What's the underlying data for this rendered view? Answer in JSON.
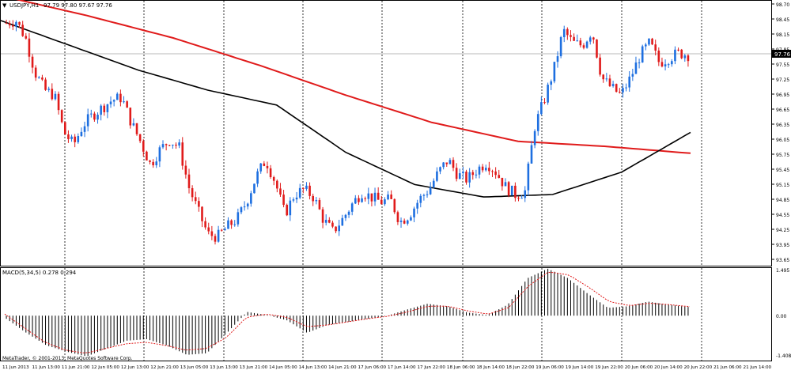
{
  "window": {
    "symbol_label": "USDJPY,H1",
    "ohlc_label": "97.79 97.80 97.67 97.76",
    "menu_arrow": "▼"
  },
  "price_axis": {
    "labels": [
      "98.70",
      "98.45",
      "98.15",
      "97.85",
      "97.55",
      "97.25",
      "96.95",
      "96.65",
      "96.35",
      "96.05",
      "95.75",
      "95.45",
      "95.15",
      "94.85",
      "94.55",
      "94.25",
      "93.95",
      "93.65"
    ],
    "current_price": "97.76",
    "colors": {
      "bull": "#1e6fe0",
      "bear": "#e01b1b",
      "current_tag": "#000000"
    }
  },
  "macd_panel": {
    "label": "MACD(5,34,5) 0.278 0.294",
    "axis_labels": [
      "1.495",
      "0.00",
      "-1.408"
    ]
  },
  "time_axis": {
    "labels": [
      "11 Jun 2013",
      "11 Jun 13:00",
      "11 Jun 21:00",
      "12 Jun 05:00",
      "12 Jun 13:00",
      "12 Jun 21:00",
      "13 Jun 05:00",
      "13 Jun 13:00",
      "13 Jun 21:00",
      "14 Jun 05:00",
      "14 Jun 13:00",
      "14 Jun 21:00",
      "17 Jun 06:00",
      "17 Jun 14:00",
      "17 Jun 22:00",
      "18 Jun 06:00",
      "18 Jun 14:00",
      "18 Jun 22:00",
      "19 Jun 06:00",
      "19 Jun 14:00",
      "19 Jun 22:00",
      "20 Jun 06:00",
      "20 Jun 14:00",
      "20 Jun 22:00",
      "21 Jun 06:00",
      "21 Jun 14:00"
    ]
  },
  "copyright": "MetaTrader, © 2001-2013, MetaQuotes Software Corp.",
  "chart_data": {
    "type": "candlestick",
    "symbol": "USDJPY",
    "timeframe": "H1",
    "ylim": [
      93.55,
      98.8
    ],
    "close_path": [
      98.4,
      98.45,
      98.1,
      97.4,
      97.05,
      96.95,
      96.2,
      95.95,
      96.35,
      96.55,
      96.7,
      96.85,
      96.9,
      96.4,
      96.0,
      95.55,
      95.85,
      96.05,
      95.9,
      95.1,
      94.6,
      94.15,
      94.1,
      94.3,
      94.45,
      94.8,
      95.3,
      95.65,
      95.2,
      94.55,
      94.95,
      95.05,
      94.9,
      94.45,
      94.2,
      94.45,
      94.75,
      95.0,
      94.9,
      94.8,
      94.85,
      94.4,
      94.55,
      94.85,
      95.05,
      95.4,
      95.65,
      95.35,
      95.25,
      95.45,
      95.6,
      95.4,
      95.1,
      94.95,
      95.0,
      96.3,
      96.85,
      97.45,
      98.25,
      98.0,
      97.95,
      98.25,
      97.3,
      97.1,
      96.95,
      97.3,
      97.75,
      98.0,
      97.6,
      97.7,
      97.8,
      97.76
    ],
    "moving_averages": [
      {
        "color": "#e01b1b",
        "values": [
          98.95,
          98.55,
          98.1,
          97.55,
          96.95,
          96.4,
          96.02,
          95.92,
          95.78
        ]
      },
      {
        "color": "#000000",
        "values": [
          98.45,
          97.95,
          97.45,
          97.05,
          96.75,
          95.8,
          95.15,
          94.9,
          94.95,
          95.4,
          96.2
        ]
      }
    ],
    "macd": {
      "colors": {
        "histogram": "#000000",
        "signal": "#e01b1b"
      },
      "histogram_path": [
        -0.1,
        -0.55,
        -0.95,
        -1.15,
        -1.3,
        -1.05,
        -0.8,
        -0.75,
        -0.95,
        -1.25,
        -1.2,
        -0.55,
        0.12,
        0.02,
        -0.15,
        -0.55,
        -0.3,
        -0.2,
        -0.1,
        0.0,
        0.2,
        0.38,
        0.3,
        0.1,
        0.02,
        0.35,
        1.2,
        1.5,
        1.2,
        0.7,
        0.25,
        0.3,
        0.45,
        0.35,
        0.28
      ],
      "signal_path": [
        0.05,
        -0.4,
        -0.85,
        -1.1,
        -1.2,
        -1.05,
        -0.9,
        -0.85,
        -0.95,
        -1.1,
        -1.05,
        -0.7,
        -0.05,
        0.05,
        -0.05,
        -0.35,
        -0.3,
        -0.2,
        -0.1,
        -0.02,
        0.12,
        0.3,
        0.3,
        0.15,
        0.05,
        0.25,
        0.95,
        1.4,
        1.3,
        0.9,
        0.45,
        0.32,
        0.4,
        0.35,
        0.29
      ],
      "ylim": [
        -1.408,
        1.495
      ]
    }
  }
}
